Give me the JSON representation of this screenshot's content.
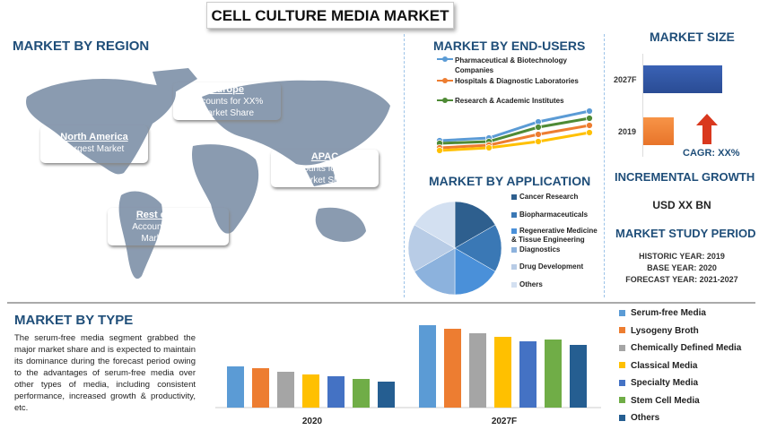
{
  "title": "CELL CULTURE MEDIA MARKET",
  "region": {
    "heading": "MARKET BY REGION",
    "boxes": [
      {
        "name": "Europe",
        "line1": "Accounts for XX%",
        "line2": "Market Share",
        "color": "#8B5A37"
      },
      {
        "name": "North America",
        "line1": "Largest Market",
        "line2": "",
        "color": "#C0262C"
      },
      {
        "name": "APAC",
        "line1": "Accounts for XX%",
        "line2": "Market Share",
        "color": "#4B5A4C"
      },
      {
        "name": "Rest of World",
        "line1": "Accounts for XX%",
        "line2": "Market Share",
        "color": "#1F3A6E"
      }
    ]
  },
  "end_users": {
    "heading": "MARKET BY END-USERS",
    "legend": [
      "Pharmaceutical & Biotechnology Companies",
      "Hospitals & Diagnostic Laboratories",
      "Research & Academic Institutes"
    ]
  },
  "application": {
    "heading": "MARKET BY APPLICATION",
    "legend": [
      "Cancer Research",
      "Biopharmaceuticals",
      "Regenerative Medicine & Tissue Engineering",
      "Diagnostics",
      "Drug Development",
      "Others"
    ]
  },
  "market_size": {
    "heading": "MARKET SIZE",
    "cagr": "CAGR: XX%",
    "categories": [
      "2027F",
      "2019"
    ]
  },
  "incremental": {
    "heading": "INCREMENTAL GROWTH",
    "value": "USD XX BN"
  },
  "study": {
    "heading": "MARKET STUDY PERIOD",
    "historic": "HISTORIC YEAR: 2019",
    "base": "BASE YEAR: 2020",
    "forecast": "FORECAST YEAR: 2021-2027"
  },
  "type": {
    "heading": "MARKET BY TYPE",
    "text": "The serum-free media segment grabbed the major market share and is expected to maintain its dominance during the forecast period owing to the advantages of serum-free media over other types of media, including consistent performance, increased growth & productivity, etc."
  },
  "chart_data": [
    {
      "type": "line",
      "series": [
        {
          "name": "Pharmaceutical & Biotechnology Companies",
          "color": "#5B9BD5",
          "values": [
            33,
            36,
            54,
            66
          ]
        },
        {
          "name": "Research & Academic Institutes",
          "color": "#4E8A35",
          "values": [
            30,
            32,
            48,
            58
          ]
        },
        {
          "name": "Hospitals & Diagnostic Laboratories",
          "color": "#ED7D31",
          "values": [
            25,
            28,
            40,
            50
          ]
        },
        {
          "color": "#FFC000",
          "values": [
            22,
            25,
            32,
            42
          ]
        }
      ],
      "grid": false
    },
    {
      "type": "pie",
      "categories": [
        "Cancer Research",
        "Biopharmaceuticals",
        "Regenerative Medicine & Tissue Engineering",
        "Diagnostics",
        "Drug Development",
        "Others"
      ],
      "values": [
        1,
        1,
        1,
        1,
        1,
        1
      ],
      "colors": [
        "#2E5F8E",
        "#3A78B5",
        "#4A90D9",
        "#8CB2DD",
        "#B8CCE6",
        "#D3E0F1"
      ]
    },
    {
      "type": "bar",
      "orientation": "horizontal",
      "categories": [
        "2027F",
        "2019"
      ],
      "values": [
        88,
        34
      ],
      "colors": [
        "#2F55A4",
        "#F08030"
      ]
    },
    {
      "type": "bar",
      "categories": [
        "2020",
        "2027F"
      ],
      "series": [
        {
          "name": "Serum-free Media",
          "color": "#5B9BD5",
          "values": [
            46,
            92
          ]
        },
        {
          "name": "Lysogeny Broth",
          "color": "#ED7D31",
          "values": [
            44,
            88
          ]
        },
        {
          "name": "Chemically Defined Media",
          "color": "#A5A5A5",
          "values": [
            40,
            83
          ]
        },
        {
          "name": "Classical Media",
          "color": "#FFC000",
          "values": [
            37,
            79
          ]
        },
        {
          "name": "Specialty Media",
          "color": "#4472C4",
          "values": [
            35,
            74
          ]
        },
        {
          "name": "Stem Cell Media",
          "color": "#70AD47",
          "values": [
            32,
            76
          ]
        },
        {
          "name": "Others",
          "color": "#255E91",
          "values": [
            29,
            70
          ]
        }
      ],
      "grid": false,
      "legend": "right"
    }
  ]
}
